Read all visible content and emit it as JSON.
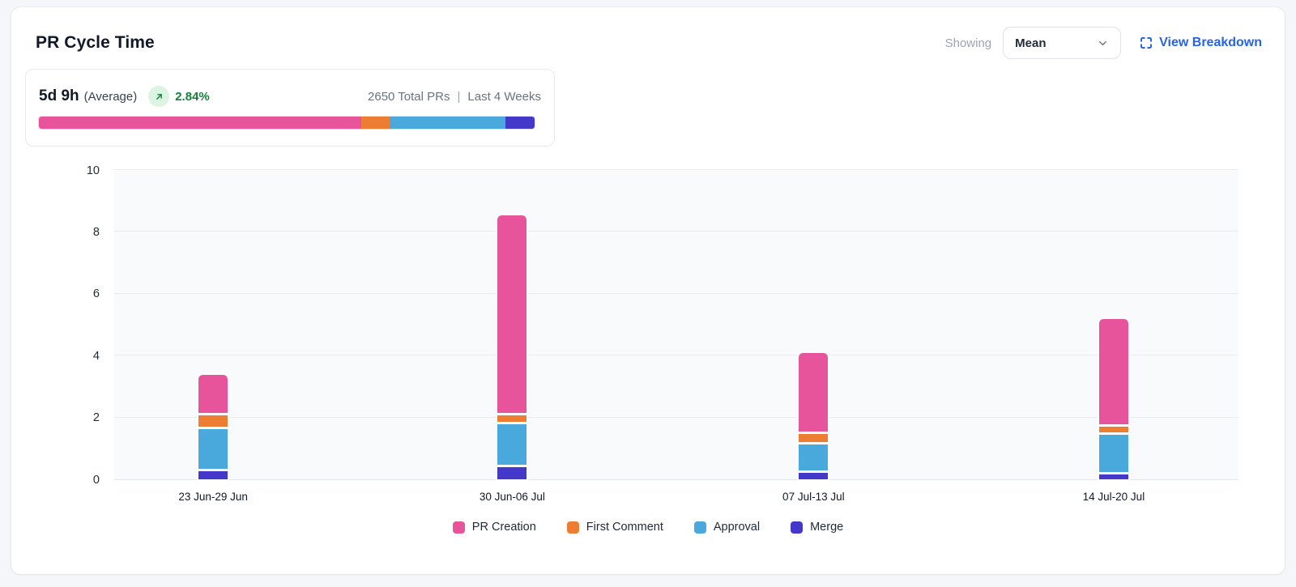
{
  "header": {
    "title": "PR Cycle Time",
    "showing_label": "Showing",
    "metric_selected": "Mean",
    "view_breakdown_label": "View Breakdown",
    "link_color": "#2563eb"
  },
  "summary": {
    "value": "5d 9h",
    "value_suffix": "(Average)",
    "trend_pct": "2.84%",
    "trend_direction": "up",
    "trend_color": "#15803d",
    "trend_badge_bg": "#dcf5e3",
    "total_prs": "2650 Total PRs",
    "meta_divider": "|",
    "period": "Last 4 Weeks",
    "distribution_pct": [
      65.1,
      5.6,
      23.4,
      5.9
    ]
  },
  "chart_data": {
    "type": "bar",
    "stacked": true,
    "title": "PR Cycle Time",
    "xlabel": "",
    "ylabel": "",
    "categories": [
      "23 Jun-29 Jun",
      "30 Jun-06 Jul",
      "07 Jul-13 Jul",
      "14 Jul-20 Jul"
    ],
    "series": [
      {
        "name": "PR Creation",
        "color": "#e8549b",
        "values": [
          1.25,
          6.4,
          2.55,
          3.4
        ]
      },
      {
        "name": "First Comment",
        "color": "#ed7d33",
        "values": [
          0.35,
          0.2,
          0.25,
          0.2
        ]
      },
      {
        "name": "Approval",
        "color": "#4aa9dc",
        "values": [
          1.3,
          1.3,
          0.85,
          1.2
        ]
      },
      {
        "name": "Merge",
        "color": "#4338ca",
        "values": [
          0.25,
          0.4,
          0.2,
          0.15
        ]
      }
    ],
    "stack_order_top_to_bottom": [
      "PR Creation",
      "First Comment",
      "Approval",
      "Merge"
    ],
    "ylim": [
      0,
      10
    ],
    "yticks": [
      0,
      2,
      4,
      6,
      8,
      10
    ],
    "grid": true,
    "legend_position": "bottom",
    "bar_center_pct": [
      8.8,
      35.4,
      62.2,
      88.9
    ]
  }
}
